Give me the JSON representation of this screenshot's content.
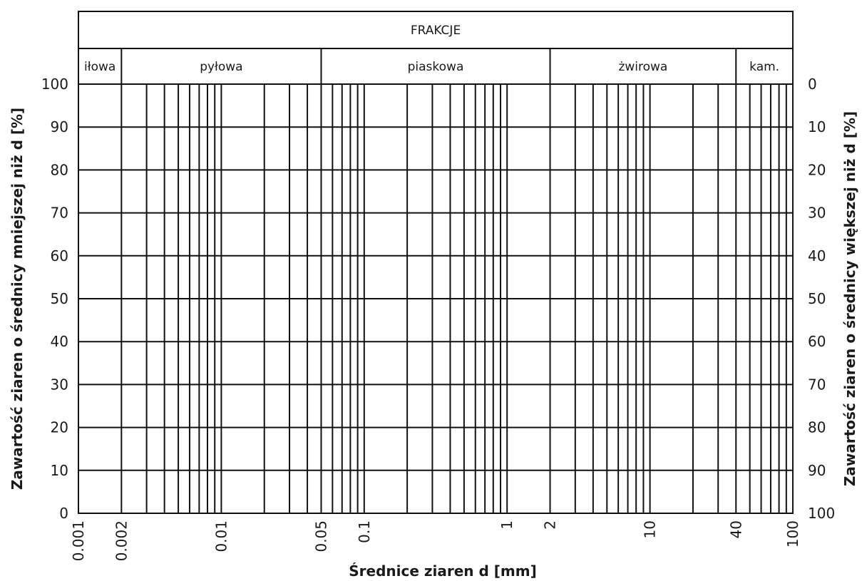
{
  "chart_data": {
    "type": "grading-chart",
    "header_title": "FRAKCJE",
    "fractions": [
      {
        "label": "iłowa",
        "from": 0.001,
        "to": 0.002
      },
      {
        "label": "pyłowa",
        "from": 0.002,
        "to": 0.05
      },
      {
        "label": "piaskowa",
        "from": 0.05,
        "to": 2
      },
      {
        "label": "żwirowa",
        "from": 2,
        "to": 40
      },
      {
        "label": "kam.",
        "from": 40,
        "to": 100
      }
    ],
    "x_scale": "log",
    "xlim": [
      0.001,
      100
    ],
    "x_ticks": [
      "0.001",
      "0.002",
      "0.01",
      "0.05",
      "0.1",
      "1",
      "2",
      "10",
      "40",
      "100"
    ],
    "x_tick_values": [
      0.001,
      0.002,
      0.01,
      0.05,
      0.1,
      1,
      2,
      10,
      40,
      100
    ],
    "x_gridlines": [
      0.002,
      0.003,
      0.004,
      0.005,
      0.006,
      0.007,
      0.008,
      0.009,
      0.01,
      0.02,
      0.03,
      0.04,
      0.05,
      0.06,
      0.07,
      0.08,
      0.09,
      0.1,
      0.2,
      0.3,
      0.4,
      0.5,
      0.6,
      0.7,
      0.8,
      0.9,
      1,
      2,
      3,
      4,
      5,
      6,
      7,
      8,
      9,
      10,
      20,
      30,
      40,
      50,
      60,
      70,
      80,
      90
    ],
    "xlabel": "Średnice ziaren d [mm]",
    "ylim": [
      0,
      100
    ],
    "y_ticks_left": [
      "0",
      "10",
      "20",
      "30",
      "40",
      "50",
      "60",
      "70",
      "80",
      "90",
      "100"
    ],
    "y_ticks_right": [
      "100",
      "90",
      "80",
      "70",
      "60",
      "50",
      "40",
      "30",
      "20",
      "10",
      "0"
    ],
    "ylabel_left": "Zawartość ziaren o średnicy mniejszej niż d [%]",
    "ylabel_right": "Zawartość ziaren o średnicy większej niż d [%]",
    "grid": true,
    "series": []
  }
}
